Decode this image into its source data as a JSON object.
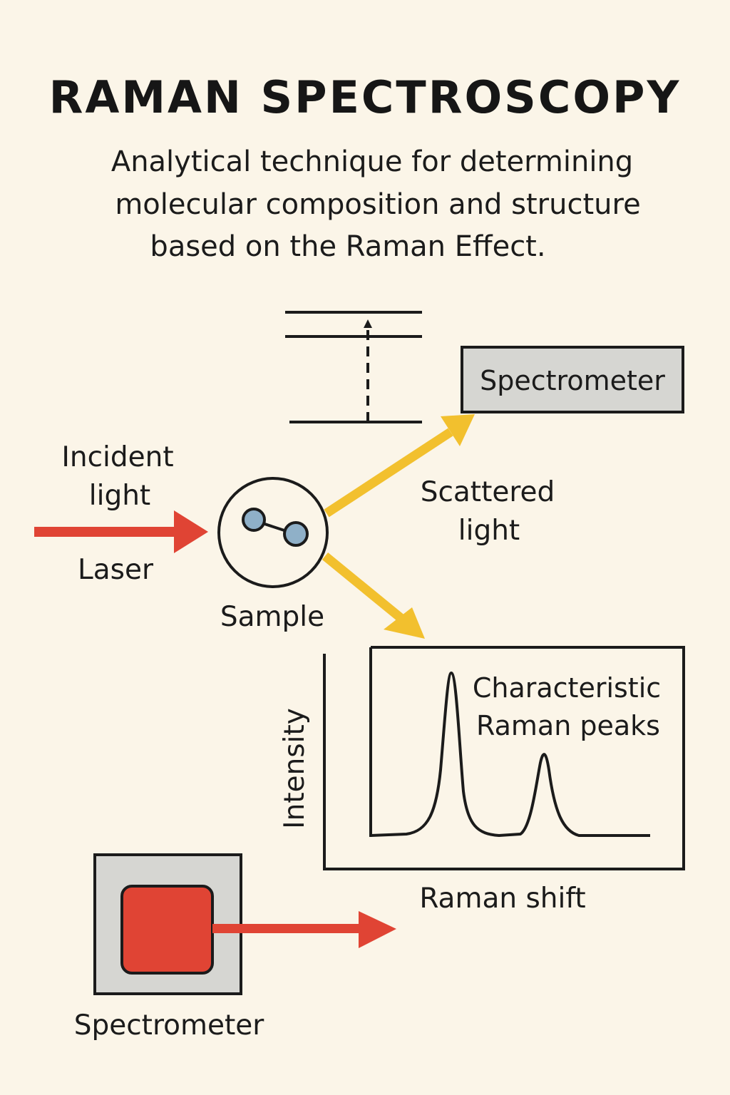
{
  "title": "RAMAN SPECTROSCOPY",
  "subtitle": {
    "line1": "Analytical technique for determining",
    "line2": "molecular composition and structure",
    "line3": "based on the Raman Effect."
  },
  "labels": {
    "incident_line1": "Incident",
    "incident_line2": "light",
    "laser": "Laser",
    "sample": "Sample",
    "scattered_line1": "Scattered",
    "scattered_line2": "light",
    "spectrometer_top": "Spectrometer",
    "spectrometer_bottom": "Spectrometer"
  },
  "spectrum": {
    "ylabel": "Intensity",
    "xlabel": "Raman shift",
    "annotation_line1": "Characteristic",
    "annotation_line2": "Raman peaks"
  },
  "colors": {
    "background": "#fbf5e8",
    "laser_red": "#e04434",
    "scatter_yellow": "#f2c02e",
    "molecule_blue": "#8fb0c8",
    "box_gray": "#d6d6d2",
    "ink": "#1b1b1b"
  },
  "icons": {
    "molecule": "molecule-icon",
    "laser_source": "laser-source-icon",
    "energy_levels": "energy-level-diagram"
  }
}
